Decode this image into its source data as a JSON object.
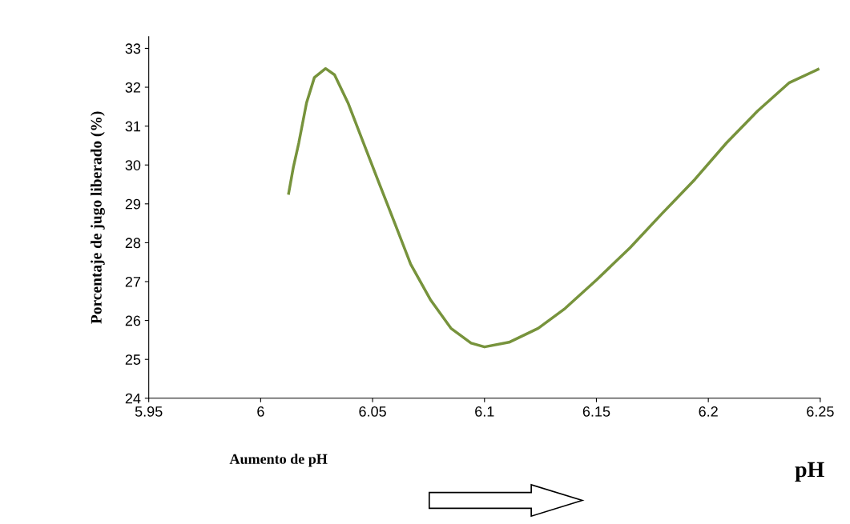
{
  "chart_data": {
    "type": "line",
    "xlabel": "Aumento de pH",
    "ylabel": "Porcentaje de jugo liberado (%)",
    "annotations": [
      "pH"
    ],
    "x": [
      6.0125,
      6.0146,
      6.017,
      6.0205,
      6.024,
      6.029,
      6.033,
      6.039,
      6.046,
      6.053,
      6.06,
      6.067,
      6.076,
      6.085,
      6.094,
      6.1,
      6.111,
      6.124,
      6.136,
      6.15,
      6.165,
      6.179,
      6.194,
      6.208,
      6.222,
      6.236,
      6.249
    ],
    "series": [
      {
        "color": "#77933c",
        "values": [
          29.27,
          29.94,
          30.56,
          31.6,
          32.25,
          32.48,
          32.32,
          31.6,
          30.56,
          29.52,
          28.49,
          27.45,
          26.52,
          25.8,
          25.42,
          25.32,
          25.44,
          25.8,
          26.31,
          27.04,
          27.87,
          28.73,
          29.63,
          30.56,
          31.39,
          32.11,
          32.46
        ]
      }
    ],
    "xlim": [
      5.95,
      6.25
    ],
    "xticks": [
      5.95,
      6,
      6.05,
      6.1,
      6.15,
      6.2,
      6.25
    ],
    "ylim": [
      24,
      33.3
    ],
    "yticks": [
      24,
      25,
      26,
      27,
      28,
      29,
      30,
      31,
      32,
      33
    ],
    "grid": false,
    "legend": false,
    "marker": "none",
    "line_style": "solid"
  }
}
